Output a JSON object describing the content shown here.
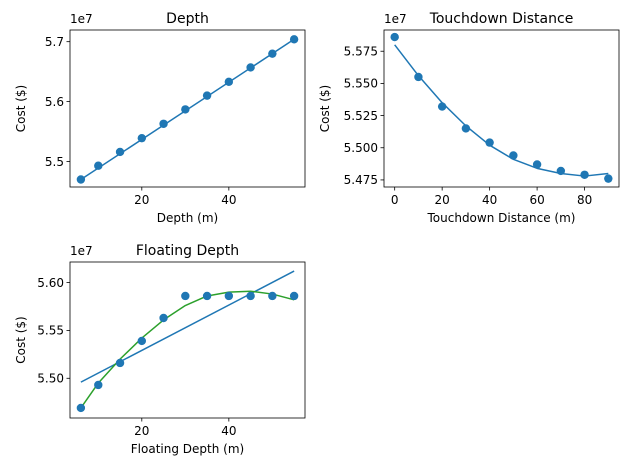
{
  "chart_data": [
    {
      "type": "scatter",
      "title": "Depth",
      "xlabel": "Depth (m)",
      "ylabel": "Cost ($)",
      "offset_text": "1e7",
      "xlim": [
        3.5,
        57.5
      ],
      "ylim": [
        5.4575,
        5.7195
      ],
      "xticks": [
        20,
        40
      ],
      "yticks": [
        5.5,
        5.6,
        5.7
      ],
      "xtick_labels": [
        "20",
        "40"
      ],
      "ytick_labels": [
        "5.5",
        "5.6",
        "5.7"
      ],
      "scatter_series": [
        {
          "color": "#1f77b4",
          "x": [
            6,
            10,
            15,
            20,
            25,
            30,
            35,
            40,
            45,
            50,
            55
          ],
          "y": [
            5.47,
            5.493,
            5.516,
            5.539,
            5.563,
            5.587,
            5.61,
            5.633,
            5.657,
            5.68,
            5.704
          ]
        }
      ],
      "line_series": [
        {
          "color": "#1f77b4",
          "x": [
            6,
            55
          ],
          "y": [
            5.47,
            5.704
          ]
        }
      ]
    },
    {
      "type": "scatter",
      "title": "Touchdown Distance",
      "xlabel": "Touchdown Distance (m)",
      "ylabel": "Cost ($)",
      "offset_text": "1e7",
      "xlim": [
        -4.5,
        94.5
      ],
      "ylim": [
        5.4695,
        5.5915
      ],
      "xticks": [
        0,
        20,
        40,
        60,
        80
      ],
      "yticks": [
        5.475,
        5.5,
        5.525,
        5.55,
        5.575
      ],
      "xtick_labels": [
        "0",
        "20",
        "40",
        "60",
        "80"
      ],
      "ytick_labels": [
        "5.475",
        "5.500",
        "5.525",
        "5.550",
        "5.575"
      ],
      "scatter_series": [
        {
          "color": "#1f77b4",
          "x": [
            0,
            10,
            20,
            30,
            40,
            50,
            60,
            70,
            80,
            90
          ],
          "y": [
            5.586,
            5.555,
            5.532,
            5.515,
            5.504,
            5.494,
            5.487,
            5.482,
            5.479,
            5.476
          ]
        }
      ],
      "line_series": [
        {
          "color": "#1f77b4",
          "x": [
            0,
            10,
            20,
            30,
            40,
            50,
            60,
            70,
            80,
            90
          ],
          "y": [
            5.58,
            5.556,
            5.535,
            5.517,
            5.502,
            5.491,
            5.484,
            5.48,
            5.478,
            5.48
          ]
        }
      ]
    },
    {
      "type": "scatter",
      "title": "Floating Depth",
      "xlabel": "Floating Depth (m)",
      "ylabel": "Cost ($)",
      "offset_text": "1e7",
      "xlim": [
        3.5,
        57.5
      ],
      "ylim": [
        5.4585,
        5.6215
      ],
      "xticks": [
        20,
        40
      ],
      "yticks": [
        5.5,
        5.55,
        5.6
      ],
      "xtick_labels": [
        "20",
        "40"
      ],
      "ytick_labels": [
        "5.50",
        "5.55",
        "5.60"
      ],
      "scatter_series": [
        {
          "color": "#1f77b4",
          "x": [
            6,
            10,
            15,
            20,
            25,
            30,
            35,
            40,
            45,
            50,
            55
          ],
          "y": [
            5.469,
            5.493,
            5.516,
            5.539,
            5.563,
            5.586,
            5.586,
            5.586,
            5.586,
            5.586,
            5.586
          ]
        }
      ],
      "line_series": [
        {
          "color": "#1f77b4",
          "x": [
            6,
            55
          ],
          "y": [
            5.496,
            5.612
          ]
        },
        {
          "color": "#2ca02c",
          "x": [
            6,
            10,
            15,
            20,
            25,
            30,
            35,
            40,
            45,
            50,
            55
          ],
          "y": [
            5.469,
            5.495,
            5.52,
            5.542,
            5.561,
            5.576,
            5.586,
            5.59,
            5.591,
            5.588,
            5.582
          ]
        }
      ]
    }
  ]
}
